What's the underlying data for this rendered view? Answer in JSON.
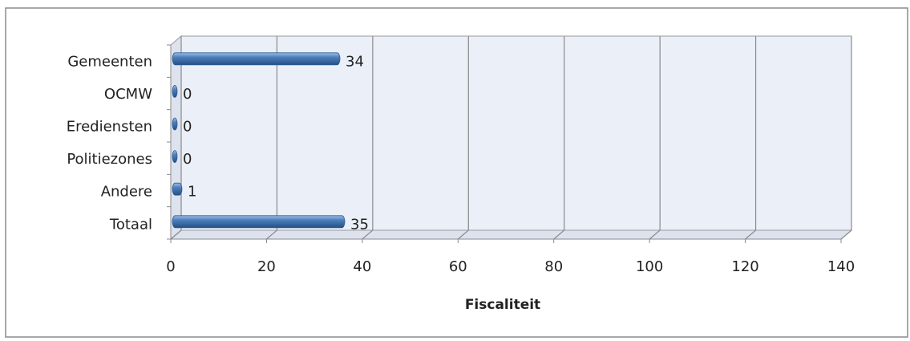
{
  "chart_data": {
    "type": "bar",
    "orientation": "horizontal",
    "x_label": "Fiscaliteit",
    "categories": [
      "Gemeenten",
      "OCMW",
      "Erediensten",
      "Politiezones",
      "Andere",
      "Totaal"
    ],
    "values": [
      34,
      0,
      0,
      0,
      1,
      35
    ],
    "color": "#4f81bd",
    "xlim": [
      0,
      140
    ],
    "xticks": [
      0,
      20,
      40,
      60,
      80,
      100,
      120,
      140
    ],
    "grid": true
  }
}
